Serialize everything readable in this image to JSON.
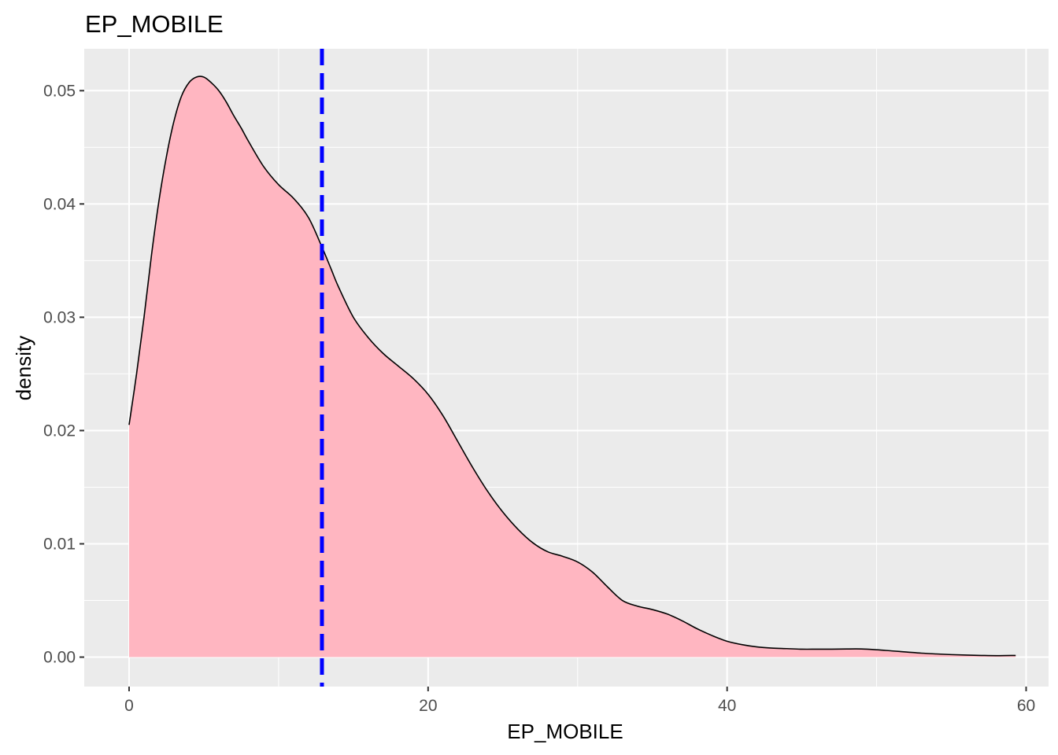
{
  "chart_data": {
    "type": "area",
    "title": "EP_MOBILE",
    "xlabel": "EP_MOBILE",
    "ylabel": "density",
    "xlim": [
      -3,
      61.5
    ],
    "ylim": [
      -0.0026,
      0.0537
    ],
    "x_ticks": [
      0,
      20,
      40,
      60
    ],
    "x_tick_labels": [
      "0",
      "20",
      "40",
      "60"
    ],
    "y_ticks": [
      0.0,
      0.01,
      0.02,
      0.03,
      0.04,
      0.05
    ],
    "y_tick_labels": [
      "0.00",
      "0.01",
      "0.02",
      "0.03",
      "0.04",
      "0.05"
    ],
    "grid": true,
    "legend": "none",
    "series": [
      {
        "x": [
          0,
          0.5,
          1,
          1.5,
          2,
          2.5,
          3,
          3.5,
          4,
          4.5,
          5,
          5.5,
          6,
          6.5,
          7,
          7.5,
          8,
          9,
          10,
          11,
          12,
          12.9,
          13.5,
          14,
          15,
          16,
          17,
          18,
          19,
          20,
          21,
          22,
          23,
          24,
          25,
          26,
          27,
          28,
          29,
          30,
          31,
          32,
          33,
          34,
          35,
          36,
          37,
          38,
          39,
          40,
          41,
          42,
          43,
          44,
          45,
          46,
          47,
          48,
          49,
          50,
          51,
          52,
          53,
          54,
          55,
          56,
          57,
          58,
          59.3
        ],
        "y": [
          0.0205,
          0.025,
          0.03,
          0.0355,
          0.0403,
          0.0442,
          0.0473,
          0.0495,
          0.0507,
          0.0512,
          0.0512,
          0.0507,
          0.05,
          0.049,
          0.0478,
          0.0467,
          0.0455,
          0.0433,
          0.0417,
          0.0405,
          0.0388,
          0.0362,
          0.0343,
          0.0327,
          0.03,
          0.0282,
          0.0268,
          0.0257,
          0.0246,
          0.0232,
          0.0213,
          0.019,
          0.0167,
          0.0146,
          0.0128,
          0.0113,
          0.0101,
          0.0093,
          0.0089,
          0.0084,
          0.0075,
          0.0062,
          0.005,
          0.0045,
          0.0042,
          0.0038,
          0.0032,
          0.0025,
          0.0019,
          0.0014,
          0.0011,
          0.0009,
          0.0008,
          0.00075,
          0.0007,
          0.0007,
          0.0007,
          0.00072,
          0.00072,
          0.00065,
          0.00055,
          0.00045,
          0.00035,
          0.00028,
          0.00022,
          0.00018,
          0.00015,
          0.00013,
          0.00015
        ]
      }
    ],
    "vline": {
      "x": 12.9,
      "style": "dashed"
    },
    "colors": {
      "panel_bg": "#ebebeb",
      "grid_major": "#ffffff",
      "fill": "#ffb6c1",
      "line": "#000000",
      "vline": "#0000ff",
      "tick_text": "#4d4d4d",
      "tick_mark": "#333333"
    }
  }
}
